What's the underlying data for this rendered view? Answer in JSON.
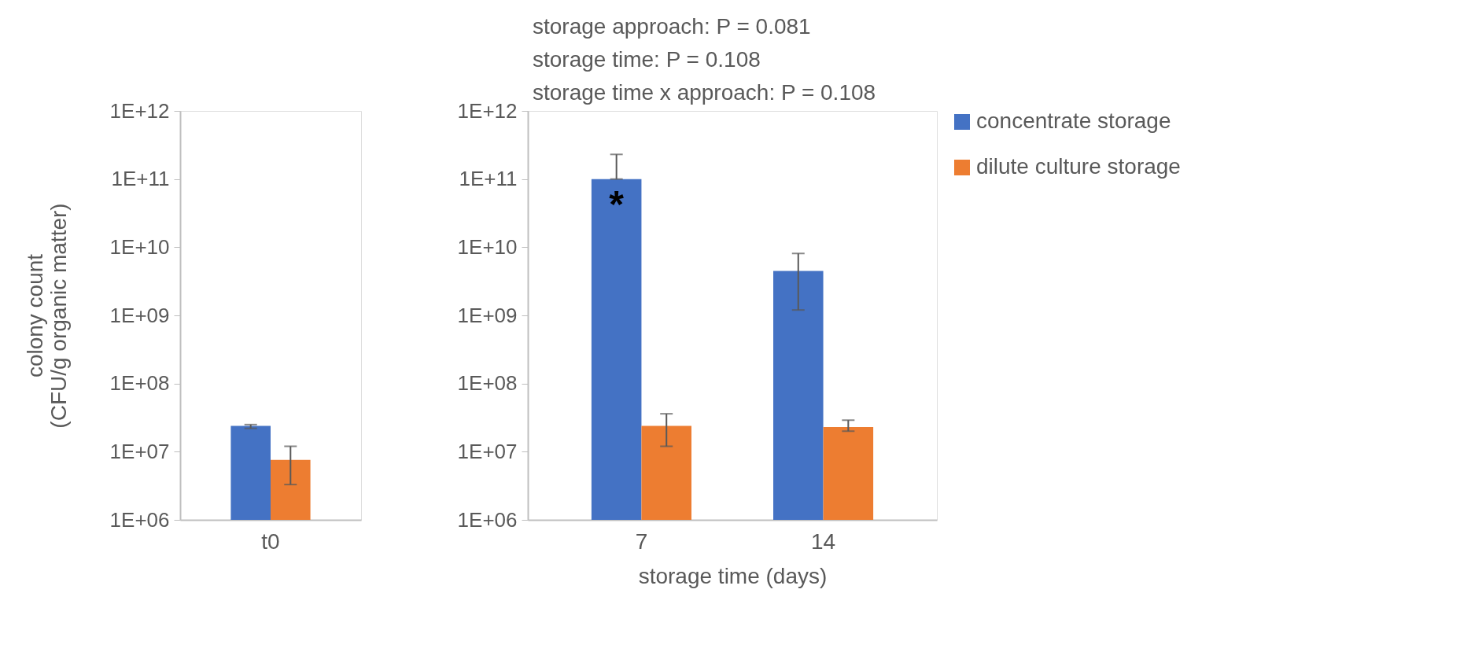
{
  "chart_data": [
    {
      "type": "bar",
      "ylabel": "colony count\n(CFU/g organic matter)",
      "categories": [
        "t0"
      ],
      "log": true,
      "ylim": [
        1000000,
        1000000000000
      ],
      "yticks": [
        {
          "value": 1000000,
          "label": "1E+06"
        },
        {
          "value": 10000000,
          "label": "1E+07"
        },
        {
          "value": 100000000,
          "label": "1E+08"
        },
        {
          "value": 1000000000,
          "label": "1E+09"
        },
        {
          "value": 10000000000,
          "label": "1E+10"
        },
        {
          "value": 100000000000,
          "label": "1E+11"
        },
        {
          "value": 1000000000000,
          "label": "1E+12"
        }
      ],
      "series": [
        {
          "color": "#4472c4",
          "values": [
            24000000
          ],
          "errors": [
            [
              22000000,
              25000000
            ]
          ]
        },
        {
          "color": "#ed7d31",
          "values": [
            7600000
          ],
          "errors": [
            [
              3300000,
              12000000
            ]
          ]
        }
      ],
      "grid": false,
      "legend": false
    },
    {
      "type": "bar",
      "xlabel": "storage time (days)",
      "categories": [
        "7",
        "14"
      ],
      "log": true,
      "ylim": [
        1000000,
        1000000000000
      ],
      "yticks": [
        {
          "value": 1000000,
          "label": "1E+06"
        },
        {
          "value": 10000000,
          "label": "1E+07"
        },
        {
          "value": 100000000,
          "label": "1E+08"
        },
        {
          "value": 1000000000,
          "label": "1E+09"
        },
        {
          "value": 10000000000,
          "label": "1E+10"
        },
        {
          "value": 100000000000,
          "label": "1E+11"
        },
        {
          "value": 1000000000000,
          "label": "1E+12"
        }
      ],
      "series": [
        {
          "name": "concentrate storage",
          "color": "#4472c4",
          "values": [
            100000000000,
            4500000000
          ],
          "errors": [
            [
              100000000000,
              230000000000
            ],
            [
              1200000000,
              8100000000
            ]
          ]
        },
        {
          "name": "dilute culture storage",
          "color": "#ed7d31",
          "values": [
            24000000,
            23000000
          ],
          "errors": [
            [
              12000000,
              36000000
            ],
            [
              20000000,
              29000000
            ]
          ]
        }
      ],
      "annotations": [
        "storage approach: P = 0.081",
        "storage time: P = 0.108",
        "storage time x approach: P = 0.108",
        {
          "text": "*",
          "x": "7",
          "y": 40000000000
        }
      ],
      "grid": false,
      "legend": "right"
    }
  ]
}
